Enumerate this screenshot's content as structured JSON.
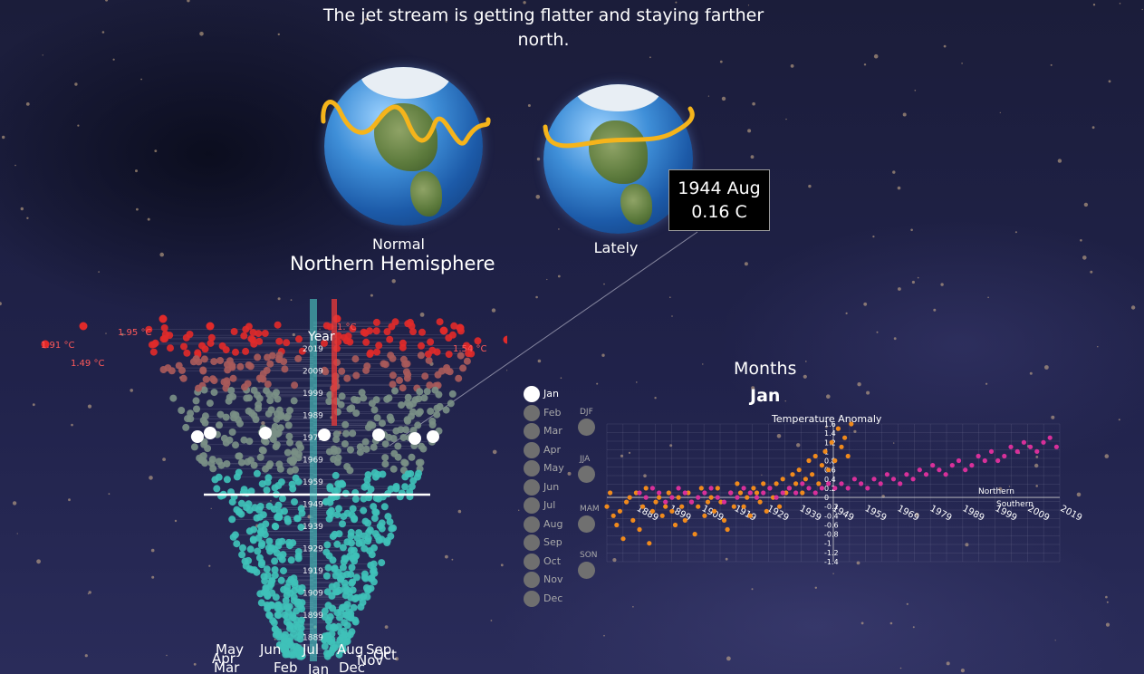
{
  "headline": "The jet stream is getting flatter and staying farther north.",
  "globes": {
    "normal_label": "Normal",
    "lately_label": "Lately",
    "hemisphere_label": "Northern Hemisphere"
  },
  "tooltip": {
    "line1": "1944 Aug",
    "line2": "0.16 C"
  },
  "radial_chart": {
    "year_label": "Year",
    "year_ticks": [
      "2019",
      "2009",
      "1999",
      "1989",
      "1979",
      "1969",
      "1959",
      "1949",
      "1939",
      "1929",
      "1919",
      "1909",
      "1899",
      "1889"
    ],
    "annotations": [
      "1.91 °C",
      "1.95 °C",
      "1.49 °C",
      "1.54 °C",
      "1.62 °C",
      "°C",
      "1.°C"
    ],
    "month_labels": [
      "May",
      "Apr",
      "Mar",
      "Jun",
      "Feb",
      "Jul",
      "Jan",
      "Aug",
      "Dec",
      "Sep",
      "Nov",
      "Oct"
    ]
  },
  "month_selector": {
    "selected": "Jan",
    "items": [
      "Jan",
      "Feb",
      "Mar",
      "Apr",
      "May",
      "Jun",
      "Jul",
      "Aug",
      "Sep",
      "Oct",
      "Nov",
      "Dec"
    ]
  },
  "season_selector": {
    "items": [
      "DJF",
      "JJA",
      "MAM",
      "SON"
    ]
  },
  "months_panel": {
    "title": "Months",
    "selected_month": "Jan"
  },
  "chart_data": {
    "type": "scatter",
    "title": "Temperature Anomaly",
    "y_ticks": [
      "1.6",
      "1.4",
      "1.2",
      "1",
      "0.8",
      "0.6",
      "0.4",
      "0.2",
      "0",
      "-0.2",
      "-0.4",
      "-0.6",
      "-0.8",
      "-1",
      "-1.2",
      "-1.4"
    ],
    "ylim": [
      -1.4,
      1.6
    ],
    "x_ticks": [
      "1889",
      "1899",
      "1909",
      "1919",
      "1929",
      "1939",
      "1949",
      "1959",
      "1969",
      "1979",
      "1989",
      "1999",
      "2009",
      "2019"
    ],
    "xlim": [
      1880,
      2019
    ],
    "axis_labels": [
      "Northern",
      "Southern"
    ],
    "colors": {
      "northern": "#f08a1c",
      "southern": "#d8309a"
    },
    "series": [
      {
        "name": "Northern",
        "points": [
          [
            1880,
            -0.2
          ],
          [
            1881,
            0.1
          ],
          [
            1882,
            -0.4
          ],
          [
            1883,
            -0.6
          ],
          [
            1884,
            -0.3
          ],
          [
            1885,
            -0.9
          ],
          [
            1886,
            -0.1
          ],
          [
            1887,
            0.0
          ],
          [
            1888,
            -0.5
          ],
          [
            1889,
            0.1
          ],
          [
            1890,
            -0.7
          ],
          [
            1891,
            -0.2
          ],
          [
            1892,
            0.2
          ],
          [
            1893,
            -1.0
          ],
          [
            1894,
            -0.3
          ],
          [
            1895,
            -0.1
          ],
          [
            1896,
            0.0
          ],
          [
            1897,
            -0.4
          ],
          [
            1898,
            -0.2
          ],
          [
            1899,
            0.1
          ],
          [
            1900,
            -0.3
          ],
          [
            1901,
            -0.6
          ],
          [
            1902,
            0.0
          ],
          [
            1903,
            -0.2
          ],
          [
            1904,
            -0.5
          ],
          [
            1905,
            0.1
          ],
          [
            1906,
            -0.1
          ],
          [
            1907,
            -0.8
          ],
          [
            1908,
            -0.2
          ],
          [
            1909,
            0.2
          ],
          [
            1910,
            -0.4
          ],
          [
            1911,
            -0.1
          ],
          [
            1912,
            0.0
          ],
          [
            1913,
            -0.3
          ],
          [
            1914,
            0.2
          ],
          [
            1915,
            -0.1
          ],
          [
            1916,
            -0.5
          ],
          [
            1917,
            -0.7
          ],
          [
            1918,
            0.1
          ],
          [
            1919,
            -0.2
          ],
          [
            1920,
            0.3
          ],
          [
            1921,
            0.1
          ],
          [
            1922,
            -0.2
          ],
          [
            1923,
            0.0
          ],
          [
            1924,
            -0.4
          ],
          [
            1925,
            0.2
          ],
          [
            1926,
            0.1
          ],
          [
            1927,
            -0.1
          ],
          [
            1928,
            0.3
          ],
          [
            1929,
            -0.3
          ],
          [
            1930,
            0.2
          ],
          [
            1931,
            0.0
          ],
          [
            1932,
            0.3
          ],
          [
            1933,
            -0.2
          ],
          [
            1934,
            0.4
          ],
          [
            1935,
            0.1
          ],
          [
            1936,
            0.2
          ],
          [
            1937,
            0.5
          ],
          [
            1938,
            0.3
          ],
          [
            1939,
            0.6
          ],
          [
            1940,
            0.1
          ],
          [
            1941,
            0.4
          ],
          [
            1942,
            0.8
          ],
          [
            1943,
            0.5
          ],
          [
            1944,
            0.9
          ],
          [
            1945,
            0.3
          ],
          [
            1946,
            0.7
          ],
          [
            1947,
            1.0
          ],
          [
            1948,
            0.6
          ],
          [
            1949,
            1.2
          ],
          [
            1950,
            0.8
          ],
          [
            1951,
            1.5
          ],
          [
            1952,
            1.1
          ],
          [
            1953,
            1.3
          ],
          [
            1954,
            0.9
          ],
          [
            1955,
            1.6
          ]
        ]
      },
      {
        "name": "Southern",
        "points": [
          [
            1890,
            0.1
          ],
          [
            1892,
            0.0
          ],
          [
            1894,
            0.2
          ],
          [
            1896,
            0.1
          ],
          [
            1898,
            -0.1
          ],
          [
            1900,
            0.0
          ],
          [
            1902,
            0.2
          ],
          [
            1904,
            0.1
          ],
          [
            1906,
            -0.1
          ],
          [
            1908,
            0.0
          ],
          [
            1910,
            0.1
          ],
          [
            1912,
            0.2
          ],
          [
            1914,
            0.0
          ],
          [
            1916,
            -0.1
          ],
          [
            1918,
            0.1
          ],
          [
            1920,
            0.0
          ],
          [
            1922,
            0.2
          ],
          [
            1924,
            0.1
          ],
          [
            1926,
            0.0
          ],
          [
            1928,
            0.1
          ],
          [
            1930,
            0.2
          ],
          [
            1932,
            0.0
          ],
          [
            1934,
            0.1
          ],
          [
            1936,
            0.2
          ],
          [
            1938,
            0.1
          ],
          [
            1940,
            0.3
          ],
          [
            1942,
            0.2
          ],
          [
            1944,
            0.1
          ],
          [
            1946,
            0.2
          ],
          [
            1948,
            0.3
          ],
          [
            1950,
            0.2
          ],
          [
            1952,
            0.3
          ],
          [
            1954,
            0.2
          ],
          [
            1956,
            0.4
          ],
          [
            1958,
            0.3
          ],
          [
            1960,
            0.2
          ],
          [
            1962,
            0.4
          ],
          [
            1964,
            0.3
          ],
          [
            1966,
            0.5
          ],
          [
            1968,
            0.4
          ],
          [
            1970,
            0.3
          ],
          [
            1972,
            0.5
          ],
          [
            1974,
            0.4
          ],
          [
            1976,
            0.6
          ],
          [
            1978,
            0.5
          ],
          [
            1980,
            0.7
          ],
          [
            1982,
            0.6
          ],
          [
            1984,
            0.5
          ],
          [
            1986,
            0.7
          ],
          [
            1988,
            0.8
          ],
          [
            1990,
            0.6
          ],
          [
            1992,
            0.7
          ],
          [
            1994,
            0.9
          ],
          [
            1996,
            0.8
          ],
          [
            1998,
            1.0
          ],
          [
            2000,
            0.8
          ],
          [
            2002,
            0.9
          ],
          [
            2004,
            1.1
          ],
          [
            2006,
            1.0
          ],
          [
            2008,
            1.2
          ],
          [
            2010,
            1.1
          ],
          [
            2012,
            1.0
          ],
          [
            2014,
            1.2
          ],
          [
            2016,
            1.3
          ],
          [
            2018,
            1.1
          ]
        ]
      }
    ]
  }
}
